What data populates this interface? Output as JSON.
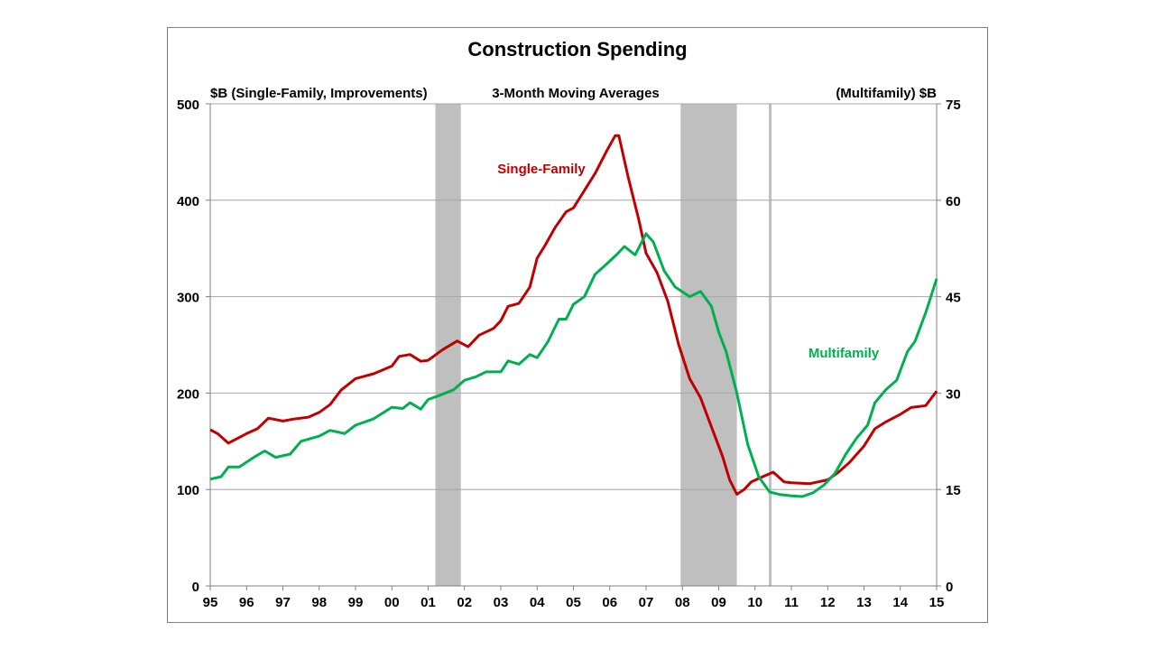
{
  "chart_data": {
    "type": "line",
    "title": "Construction Spending",
    "subtitle": "3-Month Moving Averages",
    "ylabel_left": "$B (Single-Family, Improvements)",
    "ylabel_right": "(Multifamily) $B",
    "ylim_left": [
      0,
      500
    ],
    "ylim_right": [
      0,
      75
    ],
    "yticks_left": [
      "0",
      "100",
      "200",
      "300",
      "400",
      "500"
    ],
    "yticks_right": [
      "0",
      "15",
      "30",
      "45",
      "60",
      "75"
    ],
    "xlim": [
      1995,
      2015
    ],
    "xticks": [
      "95",
      "96",
      "97",
      "98",
      "99",
      "00",
      "01",
      "02",
      "03",
      "04",
      "05",
      "06",
      "07",
      "08",
      "09",
      "10",
      "11",
      "12",
      "13",
      "14",
      "15"
    ],
    "grid": true,
    "recessions": [
      [
        2001.2,
        2001.9
      ],
      [
        2007.95,
        2009.5
      ],
      [
        2010.38,
        2010.45
      ]
    ],
    "colors": {
      "single_family": "#c00000",
      "multifamily": "#00b050",
      "recession": "#bfbfbf"
    },
    "series": [
      {
        "name": "Single-Family",
        "axis": "left",
        "annotation": "Single-Family",
        "x": [
          1995.0,
          1995.2,
          1995.5,
          1996.0,
          1996.3,
          1996.6,
          1997.0,
          1997.3,
          1997.7,
          1998.0,
          1998.3,
          1998.6,
          1999.0,
          1999.5,
          2000.0,
          2000.2,
          2000.5,
          2000.8,
          2001.0,
          2001.4,
          2001.8,
          2002.1,
          2002.4,
          2002.8,
          2003.0,
          2003.2,
          2003.5,
          2003.8,
          2004.0,
          2004.2,
          2004.5,
          2004.8,
          2005.0,
          2005.3,
          2005.6,
          2005.9,
          2006.15,
          2006.25,
          2006.5,
          2006.8,
          2007.0,
          2007.3,
          2007.6,
          2007.9,
          2008.2,
          2008.5,
          2008.8,
          2009.1,
          2009.3,
          2009.5,
          2009.7,
          2009.9,
          2010.2,
          2010.5,
          2010.8,
          2011.0,
          2011.5,
          2012.0,
          2012.3,
          2012.6,
          2013.0,
          2013.3,
          2013.6,
          2014.0,
          2014.3,
          2014.7,
          2015.0
        ],
        "values": [
          162,
          158,
          148,
          158,
          163,
          174,
          171,
          173,
          175,
          180,
          188,
          203,
          215,
          220,
          228,
          238,
          240,
          233,
          234,
          245,
          254,
          248,
          260,
          267,
          275,
          290,
          293,
          310,
          340,
          352,
          372,
          388,
          392,
          410,
          428,
          450,
          467,
          467,
          425,
          380,
          345,
          325,
          295,
          250,
          215,
          195,
          165,
          135,
          110,
          95,
          100,
          108,
          113,
          118,
          108,
          107,
          106,
          110,
          118,
          128,
          145,
          163,
          170,
          178,
          185,
          187,
          202
        ]
      },
      {
        "name": "Multifamily",
        "axis": "right",
        "annotation": "Multifamily",
        "x": [
          1995.0,
          1995.3,
          1995.5,
          1995.8,
          1996.2,
          1996.5,
          1996.8,
          1997.2,
          1997.5,
          1998.0,
          1998.3,
          1998.7,
          1999.0,
          1999.5,
          2000.0,
          2000.3,
          2000.5,
          2000.8,
          2001.0,
          2001.3,
          2001.7,
          2002.0,
          2002.3,
          2002.6,
          2003.0,
          2003.2,
          2003.5,
          2003.8,
          2004.0,
          2004.3,
          2004.6,
          2004.8,
          2005.0,
          2005.3,
          2005.6,
          2005.9,
          2006.2,
          2006.4,
          2006.7,
          2007.0,
          2007.2,
          2007.5,
          2007.8,
          2008.2,
          2008.5,
          2008.8,
          2009.0,
          2009.2,
          2009.5,
          2009.8,
          2010.1,
          2010.4,
          2010.7,
          2011.0,
          2011.3,
          2011.6,
          2011.9,
          2012.2,
          2012.5,
          2012.8,
          2013.1,
          2013.3,
          2013.6,
          2013.9,
          2014.2,
          2014.4,
          2014.7,
          2015.0
        ],
        "values": [
          16.6,
          17,
          18.5,
          18.5,
          20,
          21,
          20,
          20.5,
          22.5,
          23.3,
          24.2,
          23.7,
          25,
          26,
          27.8,
          27.6,
          28.5,
          27.5,
          29,
          29.6,
          30.5,
          32,
          32.5,
          33.3,
          33.3,
          35,
          34.5,
          36,
          35.5,
          38,
          41.5,
          41.5,
          43.8,
          45,
          48.5,
          50,
          51.6,
          52.8,
          51.5,
          54.8,
          53.5,
          49,
          46.5,
          45,
          45.8,
          43.5,
          39.5,
          36.5,
          30,
          22,
          17,
          14.6,
          14.2,
          14,
          13.9,
          14.5,
          15.7,
          17.5,
          20.5,
          23,
          25,
          28.5,
          30.5,
          32,
          36.5,
          38,
          42.5,
          47.8
        ]
      }
    ]
  }
}
